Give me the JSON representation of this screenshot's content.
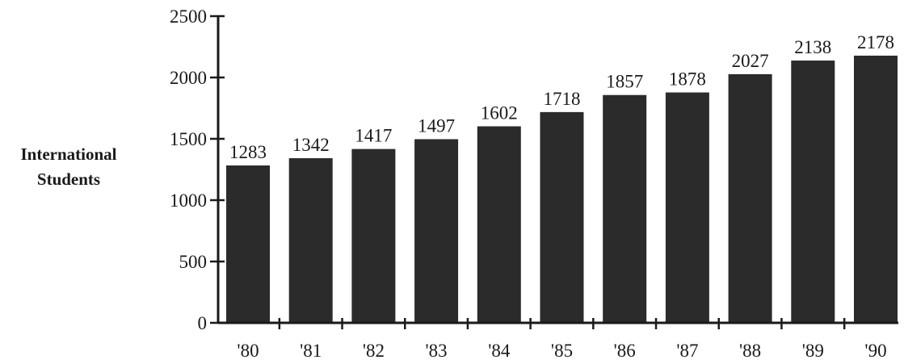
{
  "chart_data": {
    "type": "bar",
    "categories": [
      "'80",
      "'81",
      "'82",
      "'83",
      "'84",
      "'85",
      "'86",
      "'87",
      "'88",
      "'89",
      "'90"
    ],
    "values": [
      1283,
      1342,
      1417,
      1497,
      1602,
      1718,
      1857,
      1878,
      2027,
      2138,
      2178
    ],
    "data_labels": [
      "1283",
      "1342",
      "1417",
      "1497",
      "1602",
      "1718",
      "1857",
      "1878",
      "2027",
      "2138",
      "2178"
    ],
    "title": "",
    "xlabel": "",
    "ylabel_lines": [
      "International",
      "Students"
    ],
    "ylim": [
      0,
      2500
    ],
    "yticks": [
      0,
      500,
      1000,
      1500,
      2000,
      2500
    ],
    "ytick_labels": [
      "0",
      "500",
      "1000",
      "1500",
      "2000",
      "2500"
    ],
    "grid": false,
    "legend": "none",
    "bar_color": "#2b2b2b",
    "axis_color": "#1a1a1a"
  }
}
